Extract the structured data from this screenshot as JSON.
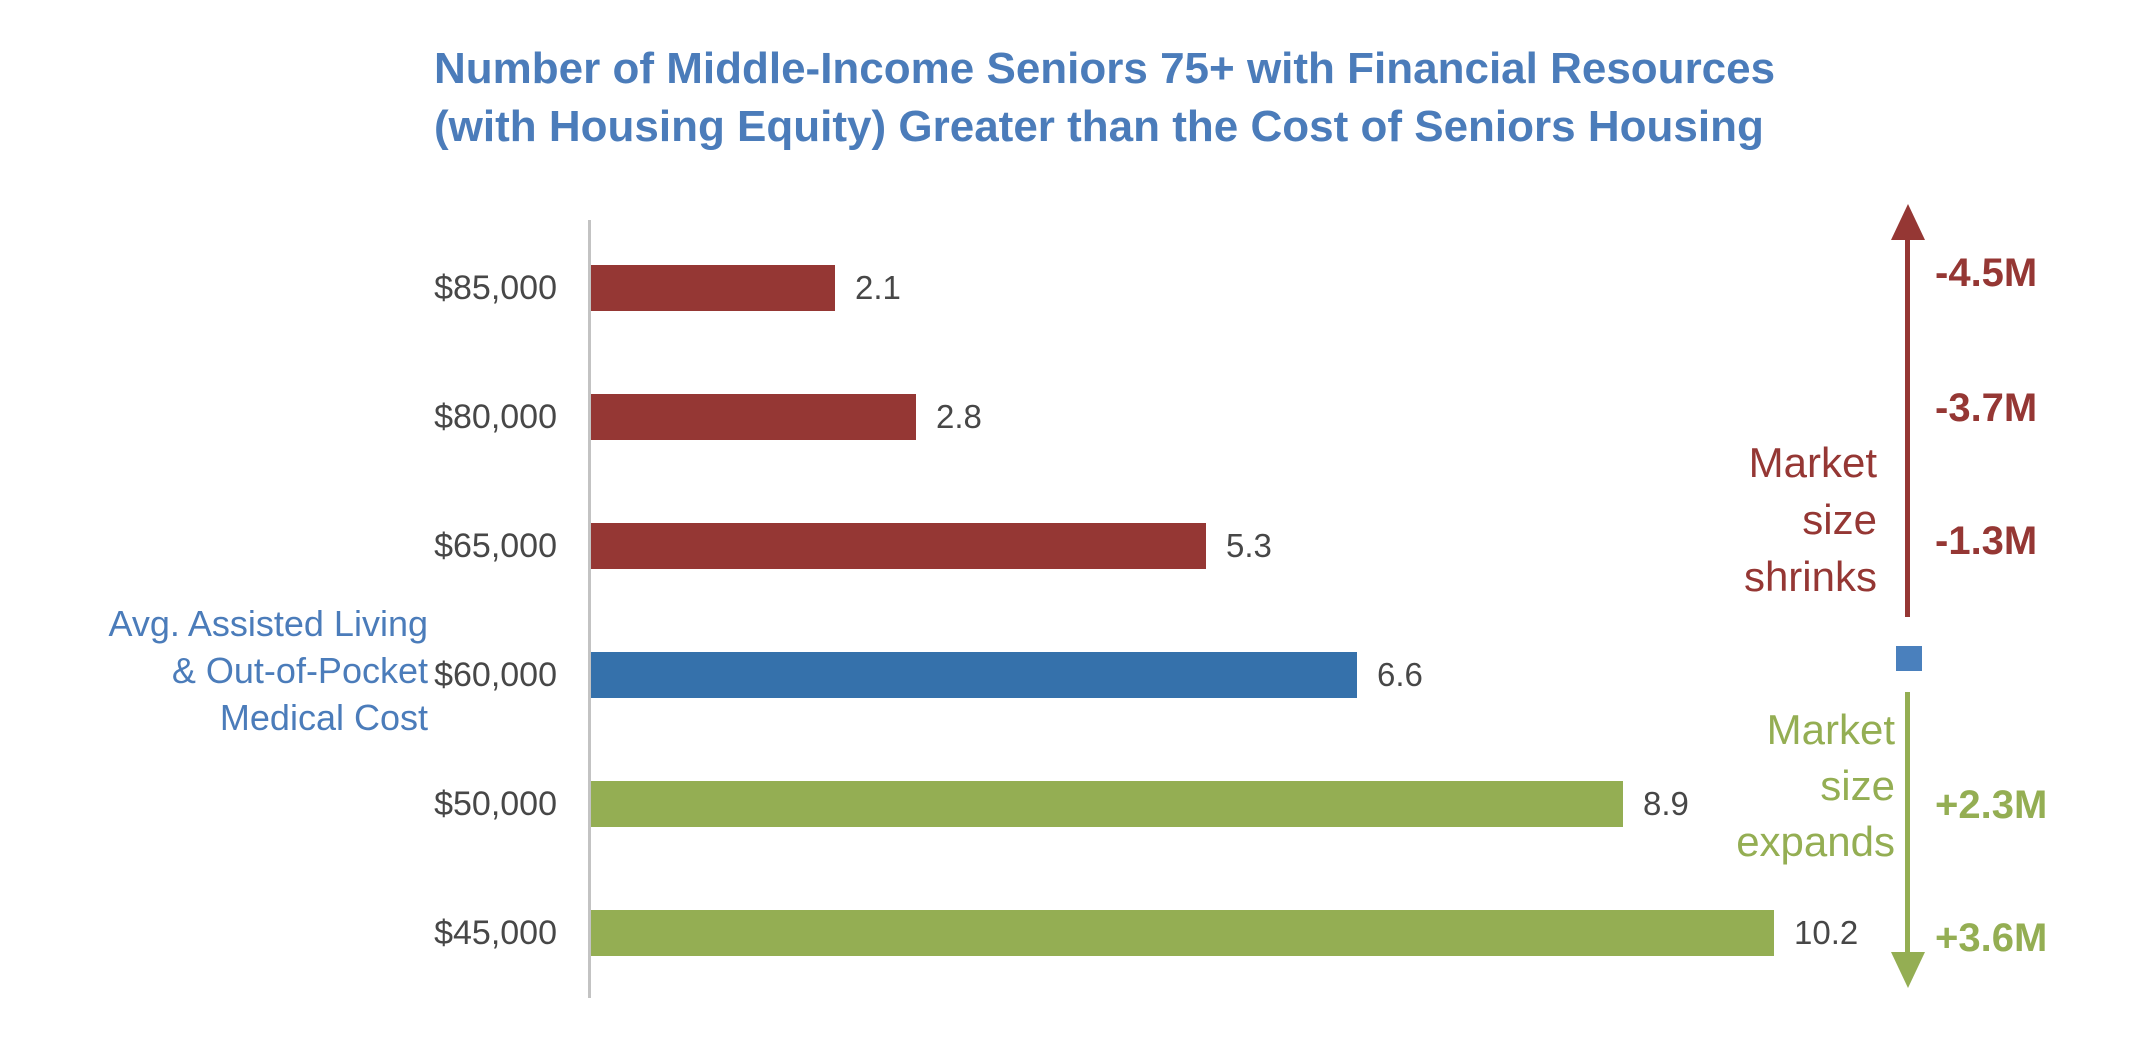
{
  "title": {
    "line1": "Number of Middle-Income Seniors 75+ with Financial Resources",
    "line2": "(with Housing Equity) Greater than the Cost of Seniors Housing"
  },
  "axis_label": {
    "line1": "Avg. Assisted Living",
    "line2": "& Out-of-Pocket",
    "line3": "Medical Cost"
  },
  "chart_data": {
    "type": "bar",
    "orientation": "horizontal",
    "title": "Number of Middle-Income Seniors 75+ with Financial Resources (with Housing Equity) Greater than the Cost of Seniors Housing",
    "categories": [
      "$85,000",
      "$80,000",
      "$65,000",
      "$60,000",
      "$50,000",
      "$45,000"
    ],
    "values": [
      2.1,
      2.8,
      5.3,
      6.6,
      8.9,
      10.2
    ],
    "data_labels": [
      "2.1",
      "2.8",
      "5.3",
      "6.6",
      "8.9",
      "10.2"
    ],
    "bar_colors": [
      "#953734",
      "#953734",
      "#953734",
      "#3571AB",
      "#94AE53",
      "#94AE53"
    ],
    "units": "millions",
    "ylabel": "Avg. Assisted Living & Out-of-Pocket Medical Cost",
    "xlabel": "",
    "value_axis_visible": false,
    "grid": false
  },
  "annotations": {
    "shrink": {
      "label_line1": "Market",
      "label_line2": "size",
      "label_line3": "shrinks",
      "values": [
        "-4.5M",
        "-3.7M",
        "-1.3M"
      ]
    },
    "expand": {
      "label_line1": "Market",
      "label_line2": "size",
      "label_line3": "expands",
      "values": [
        "+2.3M",
        "+3.6M"
      ]
    }
  },
  "colors": {
    "shrink_red": "#953734",
    "expand_green": "#94AE53",
    "marker_blue": "#4A80BD",
    "bar_blue": "#3571AB",
    "title_blue": "#4B7CBA",
    "label_gray": "#474747",
    "axis_gray": "#C3C3C3"
  }
}
